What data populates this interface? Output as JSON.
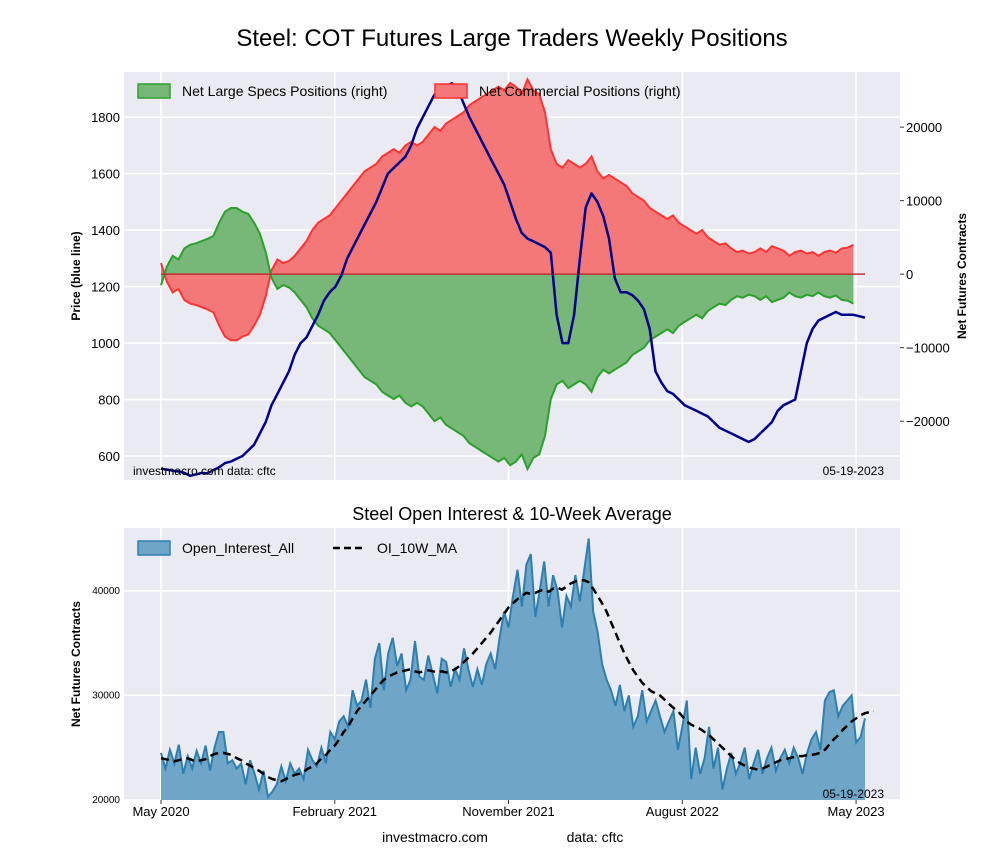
{
  "chart_data": [
    {
      "type": "line+area",
      "title": "Steel: COT Futures Large Traders Weekly Positions",
      "ylabel_left": "Price (blue line)",
      "ylabel_right": "Net Futures Contracts",
      "ylim_left": [
        515,
        1960
      ],
      "ylim_right": [
        -28000,
        27500
      ],
      "yticks_left": [
        "600",
        "800",
        "1000",
        "1200",
        "1400",
        "1600",
        "1800"
      ],
      "yticks_right": [
        "20000",
        "10000",
        "0",
        "−10000",
        "−20000"
      ],
      "yticks_right_values": [
        20000,
        10000,
        0,
        -10000,
        -20000
      ],
      "legend": [
        "Net Large Specs Positions (right)",
        "Net Commercial Positions (right)"
      ],
      "note_left": "investmacro.com    data: cftc",
      "note_right": "05-19-2023",
      "colors": {
        "price": "#00008b",
        "specs": "#2ca02c",
        "specs_fill": "#77b777",
        "comm": "#ff3333",
        "comm_fill": "#f57878"
      },
      "series": [
        {
          "name": "Price",
          "axis": "left",
          "values": [
            555,
            552,
            548,
            545,
            540,
            530,
            535,
            540,
            538,
            550,
            560,
            575,
            580,
            590,
            600,
            620,
            640,
            680,
            720,
            780,
            820,
            860,
            900,
            960,
            1000,
            1020,
            1060,
            1100,
            1150,
            1180,
            1200,
            1240,
            1300,
            1340,
            1380,
            1420,
            1460,
            1500,
            1550,
            1600,
            1620,
            1640,
            1660,
            1700,
            1760,
            1800,
            1840,
            1880,
            1900,
            1910,
            1920,
            1900,
            1850,
            1800,
            1760,
            1720,
            1680,
            1640,
            1600,
            1560,
            1500,
            1440,
            1390,
            1370,
            1360,
            1350,
            1340,
            1320,
            1100,
            1000,
            1000,
            1100,
            1300,
            1480,
            1530,
            1500,
            1450,
            1370,
            1230,
            1180,
            1180,
            1170,
            1150,
            1120,
            1050,
            900,
            860,
            830,
            820,
            800,
            780,
            770,
            760,
            750,
            740,
            720,
            700,
            690,
            680,
            670,
            660,
            650,
            660,
            680,
            700,
            720,
            760,
            780,
            790,
            800,
            900,
            1000,
            1050,
            1080,
            1090,
            1100,
            1110,
            1100,
            1100,
            1100,
            1095,
            1090
          ]
        },
        {
          "name": "Net Large Specs Positions (right)",
          "axis": "right",
          "values": [
            -1500,
            1000,
            2500,
            2000,
            3500,
            4000,
            4200,
            4500,
            4800,
            5200,
            7000,
            8500,
            9000,
            9000,
            8500,
            8200,
            7000,
            5500,
            3000,
            -500,
            -2000,
            -1500,
            -1800,
            -2500,
            -3500,
            -4500,
            -6000,
            -7000,
            -7500,
            -8000,
            -9000,
            -10000,
            -11000,
            -12000,
            -13000,
            -14000,
            -14500,
            -15000,
            -16000,
            -16500,
            -17000,
            -16500,
            -17500,
            -18000,
            -17500,
            -18000,
            -19000,
            -20000,
            -19500,
            -20500,
            -21000,
            -21500,
            -22000,
            -23000,
            -23500,
            -24000,
            -24500,
            -25000,
            -25500,
            -25000,
            -26000,
            -25500,
            -24500,
            -26500,
            -25000,
            -24500,
            -22000,
            -17000,
            -15000,
            -14500,
            -15500,
            -15000,
            -14500,
            -15000,
            -16000,
            -14000,
            -13000,
            -13500,
            -13000,
            -12500,
            -12000,
            -11000,
            -10500,
            -10000,
            -9000,
            -8500,
            -8000,
            -7500,
            -8000,
            -7000,
            -6500,
            -6000,
            -5500,
            -6000,
            -5000,
            -4500,
            -4000,
            -4200,
            -3500,
            -3000,
            -3200,
            -2800,
            -3000,
            -3500,
            -3000,
            -3800,
            -3500,
            -3200,
            -2500,
            -3000,
            -3200,
            -2800,
            -3000,
            -2500,
            -3000,
            -3200,
            -2900,
            -3500,
            -3600,
            -4000
          ]
        },
        {
          "name": "Net Commercial Positions (right)",
          "axis": "right",
          "values": [
            1500,
            -1000,
            -2500,
            -2000,
            -3500,
            -4000,
            -4200,
            -4500,
            -4800,
            -5200,
            -7000,
            -8500,
            -9000,
            -9000,
            -8500,
            -8200,
            -7000,
            -5500,
            -3000,
            500,
            2000,
            1500,
            1800,
            2500,
            3500,
            4500,
            6000,
            7000,
            7500,
            8000,
            9000,
            10000,
            11000,
            12000,
            13000,
            14000,
            14500,
            15000,
            16000,
            16500,
            17000,
            16500,
            17500,
            18000,
            17500,
            18000,
            19000,
            20000,
            19500,
            20500,
            21000,
            21500,
            22000,
            23000,
            23500,
            24000,
            24500,
            25000,
            25500,
            25000,
            26000,
            25500,
            24500,
            26500,
            25000,
            24500,
            22000,
            17000,
            15000,
            14500,
            15500,
            15000,
            14500,
            15000,
            16000,
            14000,
            13000,
            13500,
            13000,
            12500,
            12000,
            11000,
            10500,
            10000,
            9000,
            8500,
            8000,
            7500,
            8000,
            7000,
            6500,
            6000,
            5500,
            6000,
            5000,
            4500,
            4000,
            4200,
            3500,
            3000,
            3200,
            2800,
            3000,
            3500,
            3000,
            3800,
            3500,
            3200,
            2500,
            3000,
            3200,
            2800,
            3000,
            2500,
            3000,
            3200,
            2900,
            3500,
            3600,
            4000
          ]
        }
      ]
    },
    {
      "type": "area+line",
      "title": "Steel Open Interest & 10-Week Average",
      "ylabel": "Net Futures Contracts",
      "ylim": [
        20000,
        46000
      ],
      "yticks": [
        "40000",
        "30000",
        "20000"
      ],
      "yticks_values": [
        40000,
        30000,
        20000
      ],
      "legend": [
        "Open_Interest_All",
        "OI_10W_MA"
      ],
      "note_right": "05-19-2023",
      "xlabels": [
        "May 2020",
        "February 2021",
        "November 2021",
        "August 2022",
        "May 2023"
      ],
      "xlabel_positions": [
        0,
        39,
        78,
        117,
        156
      ],
      "colors": {
        "oi": "#2e7eb0",
        "oi_fill": "#6fa6c8",
        "ma": "#000000"
      },
      "series": [
        {
          "name": "Open_Interest_All",
          "values": [
            24500,
            23000,
            24800,
            23500,
            25300,
            22500,
            24200,
            23000,
            24700,
            23500,
            25200,
            22800,
            25000,
            26500,
            26500,
            23500,
            23800,
            23000,
            23500,
            21500,
            23800,
            22500,
            21000,
            22800,
            20300,
            20800,
            21500,
            23200,
            21800,
            23500,
            22500,
            23000,
            22000,
            24800,
            23800,
            23200,
            25000,
            23500,
            26500,
            25800,
            27500,
            28000,
            27000,
            30500,
            29000,
            29500,
            31500,
            28800,
            33500,
            35000,
            30500,
            34000,
            35500,
            32800,
            34000,
            30500,
            31500,
            35200,
            31800,
            31500,
            33800,
            32000,
            30200,
            33500,
            33200,
            30800,
            32500,
            31500,
            34500,
            32500,
            30800,
            32500,
            31000,
            33000,
            34000,
            32500,
            35500,
            38000,
            36500,
            39500,
            42000,
            38500,
            42500,
            43500,
            37500,
            40000,
            42800,
            38500,
            41500,
            40000,
            36500,
            39500,
            38500,
            41500,
            39000,
            42000,
            45000,
            38000,
            36000,
            33000,
            31500,
            30500,
            29000,
            31000,
            28500,
            30000,
            27000,
            28000,
            30500,
            27500,
            28500,
            29500,
            28000,
            26500,
            27500,
            28500,
            24800,
            27000,
            29500,
            22000,
            25000,
            22500,
            24000,
            27000,
            23000,
            25000,
            21000,
            23000,
            24500,
            22500,
            23500,
            25000,
            22000,
            23500,
            24800,
            22500,
            24000,
            25000,
            22800,
            24000,
            24800,
            23500,
            25000,
            24000,
            22500,
            24500,
            25800,
            26500,
            24800,
            29500,
            30300,
            30500,
            28000,
            29000,
            29500,
            30000,
            25500,
            26000,
            27800
          ]
        },
        {
          "name": "OI_10W_MA",
          "values": [
            24000,
            23900,
            23800,
            23700,
            23800,
            23900,
            24000,
            23800,
            23700,
            23800,
            23900,
            24200,
            24400,
            24500,
            24500,
            24400,
            24300,
            24000,
            23800,
            23500,
            23300,
            23000,
            22800,
            22500,
            22200,
            22000,
            21900,
            21800,
            22000,
            22200,
            22400,
            22500,
            22700,
            23000,
            23200,
            23500,
            24000,
            24300,
            24800,
            25200,
            25800,
            26500,
            27000,
            27800,
            28500,
            29000,
            29500,
            30000,
            30500,
            31000,
            31500,
            31800,
            32000,
            32200,
            32300,
            32400,
            32500,
            32300,
            32200,
            32300,
            32400,
            32300,
            32200,
            32300,
            32200,
            32300,
            32500,
            32800,
            33200,
            33600,
            34000,
            34500,
            35000,
            35500,
            36000,
            36600,
            37200,
            37800,
            38400,
            38800,
            39200,
            39500,
            39800,
            39700,
            39800,
            40000,
            40100,
            39900,
            40200,
            40300,
            40100,
            40400,
            40700,
            40900,
            41000,
            41000,
            40800,
            40200,
            39500,
            38800,
            38000,
            37000,
            36000,
            35000,
            34000,
            33200,
            32400,
            31800,
            31200,
            30800,
            30400,
            30200,
            30000,
            29600,
            29200,
            28800,
            28500,
            28000,
            27500,
            27200,
            27000,
            26800,
            26500,
            26200,
            25800,
            25400,
            25000,
            24600,
            24200,
            23800,
            23500,
            23300,
            23100,
            23000,
            22900,
            23000,
            23200,
            23400,
            23600,
            23800,
            23900,
            24000,
            24100,
            24200,
            24200,
            24300,
            24300,
            24400,
            24500,
            24800,
            25300,
            25800,
            26200,
            26700,
            27100,
            27500,
            27800,
            28100,
            28300,
            28400,
            28500
          ]
        }
      ]
    }
  ],
  "footer": {
    "site": "investmacro.com",
    "source": "data: cftc"
  }
}
